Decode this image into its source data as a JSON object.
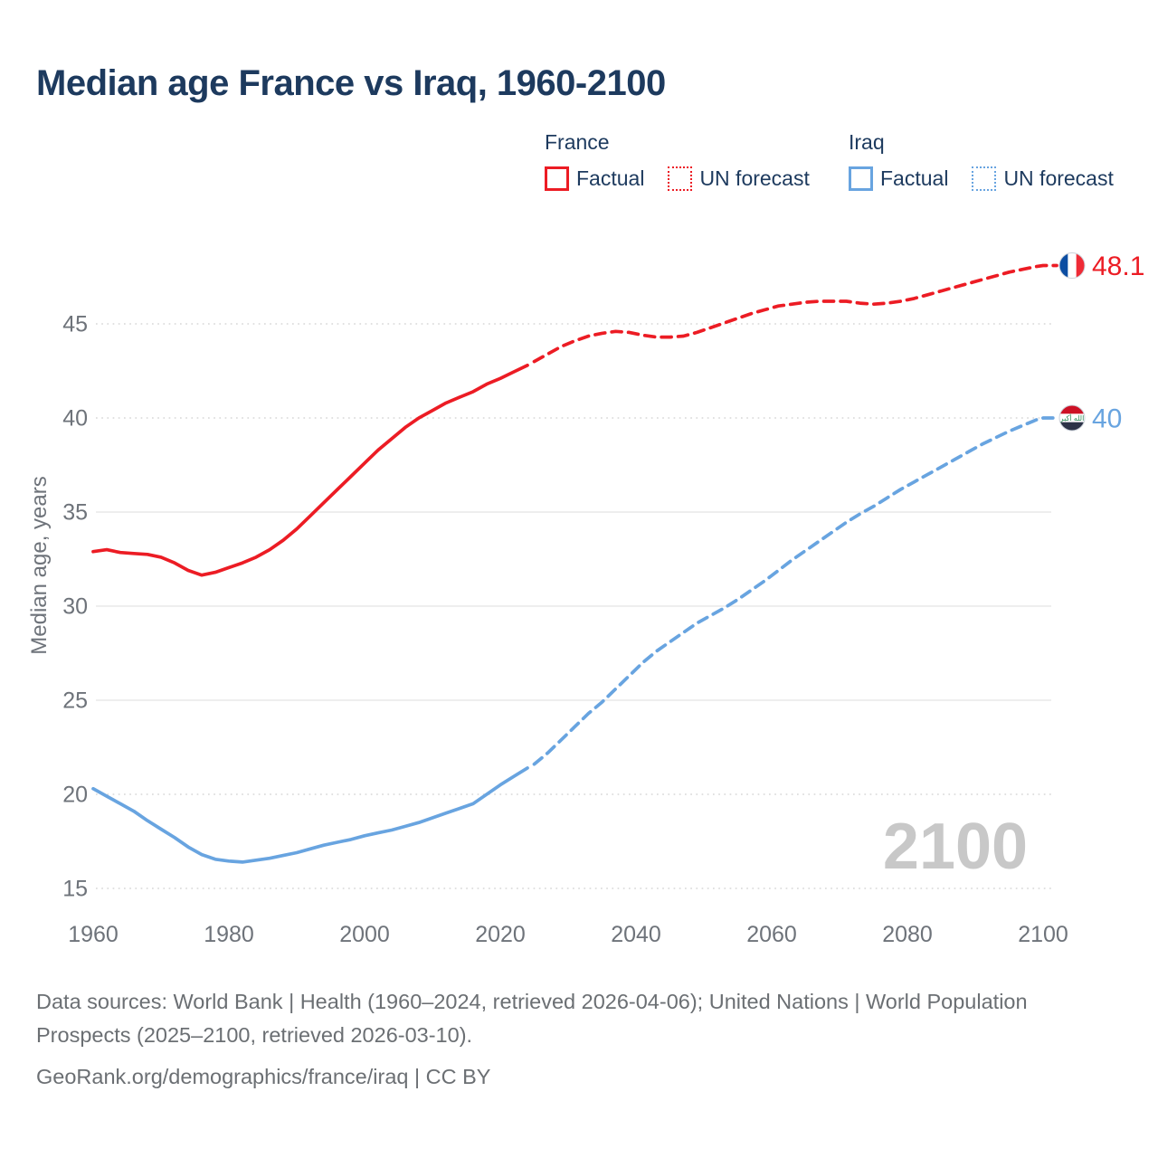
{
  "title": "Median age France vs Iraq, 1960-2100",
  "legend": {
    "france": {
      "label": "France",
      "factual": "Factual",
      "forecast": "UN forecast"
    },
    "iraq": {
      "label": "Iraq",
      "factual": "Factual",
      "forecast": "UN forecast"
    }
  },
  "y_axis_title": "Median age, years",
  "watermark": "2100",
  "end_labels": [
    {
      "country": "france",
      "value": "48.1",
      "flag": "france-flag"
    },
    {
      "country": "iraq",
      "value": "40",
      "flag": "iraq-flag"
    }
  ],
  "flags": {
    "france": {
      "orientation": "vertical",
      "stripes": [
        "#0b4da2",
        "#ffffff",
        "#ef2b36"
      ]
    },
    "iraq": {
      "orientation": "horizontal",
      "stripes": [
        "#cd1125",
        "#ffffff",
        "#2c3347"
      ],
      "emblem_text": "الله أكبر",
      "emblem_color": "#2e8b57"
    }
  },
  "colors": {
    "france": "#ec1c24",
    "iraq": "#68a4e0",
    "title_text": "#1d3a5e",
    "axis_text": "#6e737a",
    "grid_solid": "#e8e8e8",
    "grid_dotted": "#d7d7d7",
    "watermark": "#c8c8c8",
    "footer_text": "#6b6f73"
  },
  "footer": {
    "sources": "Data sources: World Bank | Health (1960–2024, retrieved 2026-04-06); United Nations | World Population Prospects (2025–2100, retrieved 2026-03-10).",
    "attribution": "GeoRank.org/demographics/france/iraq | CC BY"
  },
  "chart_data": {
    "type": "line",
    "title": "Median age France vs Iraq, 1960-2100",
    "xlabel": "",
    "ylabel": "Median age, years",
    "x_ticks": [
      1960,
      1980,
      2000,
      2020,
      2040,
      2060,
      2080,
      2100
    ],
    "y_ticks": [
      15,
      20,
      25,
      30,
      35,
      40,
      45
    ],
    "solid_gridlines": [
      25,
      30,
      35
    ],
    "dotted_gridlines": [
      15,
      20,
      40,
      45
    ],
    "xlim": [
      1960,
      2100
    ],
    "ylim": [
      15,
      48.5
    ],
    "grid": "horizontal-only",
    "legend_position": "top-right",
    "series": [
      {
        "name": "France — Factual",
        "country": "france",
        "style": "solid",
        "color_key": "france",
        "points": [
          [
            1960,
            32.9
          ],
          [
            1962,
            33.0
          ],
          [
            1964,
            32.85
          ],
          [
            1966,
            32.8
          ],
          [
            1968,
            32.75
          ],
          [
            1970,
            32.6
          ],
          [
            1972,
            32.3
          ],
          [
            1974,
            31.9
          ],
          [
            1976,
            31.65
          ],
          [
            1978,
            31.8
          ],
          [
            1980,
            32.05
          ],
          [
            1982,
            32.3
          ],
          [
            1984,
            32.6
          ],
          [
            1986,
            33.0
          ],
          [
            1988,
            33.5
          ],
          [
            1990,
            34.1
          ],
          [
            1992,
            34.8
          ],
          [
            1994,
            35.5
          ],
          [
            1996,
            36.2
          ],
          [
            1998,
            36.9
          ],
          [
            2000,
            37.6
          ],
          [
            2002,
            38.3
          ],
          [
            2004,
            38.9
          ],
          [
            2006,
            39.5
          ],
          [
            2008,
            40.0
          ],
          [
            2010,
            40.4
          ],
          [
            2012,
            40.8
          ],
          [
            2014,
            41.1
          ],
          [
            2016,
            41.4
          ],
          [
            2018,
            41.8
          ],
          [
            2020,
            42.1
          ],
          [
            2022,
            42.45
          ],
          [
            2024,
            42.8
          ]
        ]
      },
      {
        "name": "France — UN forecast",
        "country": "france",
        "style": "dashed",
        "color_key": "france",
        "points": [
          [
            2025,
            43.0
          ],
          [
            2027,
            43.4
          ],
          [
            2029,
            43.8
          ],
          [
            2031,
            44.1
          ],
          [
            2033,
            44.35
          ],
          [
            2035,
            44.5
          ],
          [
            2037,
            44.6
          ],
          [
            2039,
            44.55
          ],
          [
            2041,
            44.4
          ],
          [
            2043,
            44.3
          ],
          [
            2045,
            44.3
          ],
          [
            2047,
            44.35
          ],
          [
            2049,
            44.55
          ],
          [
            2051,
            44.8
          ],
          [
            2053,
            45.05
          ],
          [
            2055,
            45.3
          ],
          [
            2057,
            45.55
          ],
          [
            2059,
            45.75
          ],
          [
            2061,
            45.95
          ],
          [
            2063,
            46.05
          ],
          [
            2065,
            46.15
          ],
          [
            2067,
            46.2
          ],
          [
            2069,
            46.2
          ],
          [
            2071,
            46.2
          ],
          [
            2073,
            46.1
          ],
          [
            2075,
            46.05
          ],
          [
            2077,
            46.1
          ],
          [
            2079,
            46.2
          ],
          [
            2081,
            46.35
          ],
          [
            2083,
            46.55
          ],
          [
            2085,
            46.75
          ],
          [
            2087,
            46.95
          ],
          [
            2089,
            47.15
          ],
          [
            2091,
            47.35
          ],
          [
            2093,
            47.55
          ],
          [
            2095,
            47.75
          ],
          [
            2097,
            47.9
          ],
          [
            2099,
            48.05
          ],
          [
            2100,
            48.1
          ]
        ]
      },
      {
        "name": "Iraq — Factual",
        "country": "iraq",
        "style": "solid",
        "color_key": "iraq",
        "points": [
          [
            1960,
            20.3
          ],
          [
            1962,
            19.9
          ],
          [
            1964,
            19.5
          ],
          [
            1966,
            19.1
          ],
          [
            1968,
            18.6
          ],
          [
            1970,
            18.15
          ],
          [
            1972,
            17.7
          ],
          [
            1974,
            17.2
          ],
          [
            1976,
            16.8
          ],
          [
            1978,
            16.55
          ],
          [
            1980,
            16.45
          ],
          [
            1982,
            16.4
          ],
          [
            1984,
            16.5
          ],
          [
            1986,
            16.6
          ],
          [
            1988,
            16.75
          ],
          [
            1990,
            16.9
          ],
          [
            1992,
            17.1
          ],
          [
            1994,
            17.3
          ],
          [
            1996,
            17.45
          ],
          [
            1998,
            17.6
          ],
          [
            2000,
            17.8
          ],
          [
            2002,
            17.95
          ],
          [
            2004,
            18.1
          ],
          [
            2006,
            18.3
          ],
          [
            2008,
            18.5
          ],
          [
            2010,
            18.75
          ],
          [
            2012,
            19.0
          ],
          [
            2014,
            19.25
          ],
          [
            2016,
            19.5
          ],
          [
            2018,
            20.0
          ],
          [
            2020,
            20.5
          ],
          [
            2022,
            20.95
          ],
          [
            2024,
            21.4
          ]
        ]
      },
      {
        "name": "Iraq — UN forecast",
        "country": "iraq",
        "style": "dashed",
        "color_key": "iraq",
        "points": [
          [
            2025,
            21.6
          ],
          [
            2027,
            22.2
          ],
          [
            2029,
            22.9
          ],
          [
            2031,
            23.6
          ],
          [
            2033,
            24.3
          ],
          [
            2035,
            24.9
          ],
          [
            2037,
            25.6
          ],
          [
            2039,
            26.3
          ],
          [
            2041,
            27.0
          ],
          [
            2043,
            27.6
          ],
          [
            2045,
            28.1
          ],
          [
            2047,
            28.6
          ],
          [
            2049,
            29.1
          ],
          [
            2051,
            29.5
          ],
          [
            2053,
            29.9
          ],
          [
            2055,
            30.35
          ],
          [
            2057,
            30.85
          ],
          [
            2059,
            31.35
          ],
          [
            2061,
            31.9
          ],
          [
            2063,
            32.45
          ],
          [
            2065,
            32.95
          ],
          [
            2067,
            33.45
          ],
          [
            2069,
            33.95
          ],
          [
            2071,
            34.45
          ],
          [
            2073,
            34.9
          ],
          [
            2075,
            35.3
          ],
          [
            2077,
            35.75
          ],
          [
            2079,
            36.2
          ],
          [
            2081,
            36.6
          ],
          [
            2083,
            37.0
          ],
          [
            2085,
            37.4
          ],
          [
            2087,
            37.8
          ],
          [
            2089,
            38.2
          ],
          [
            2091,
            38.6
          ],
          [
            2093,
            38.95
          ],
          [
            2095,
            39.3
          ],
          [
            2097,
            39.6
          ],
          [
            2099,
            39.9
          ],
          [
            2100,
            40.0
          ]
        ]
      }
    ]
  }
}
